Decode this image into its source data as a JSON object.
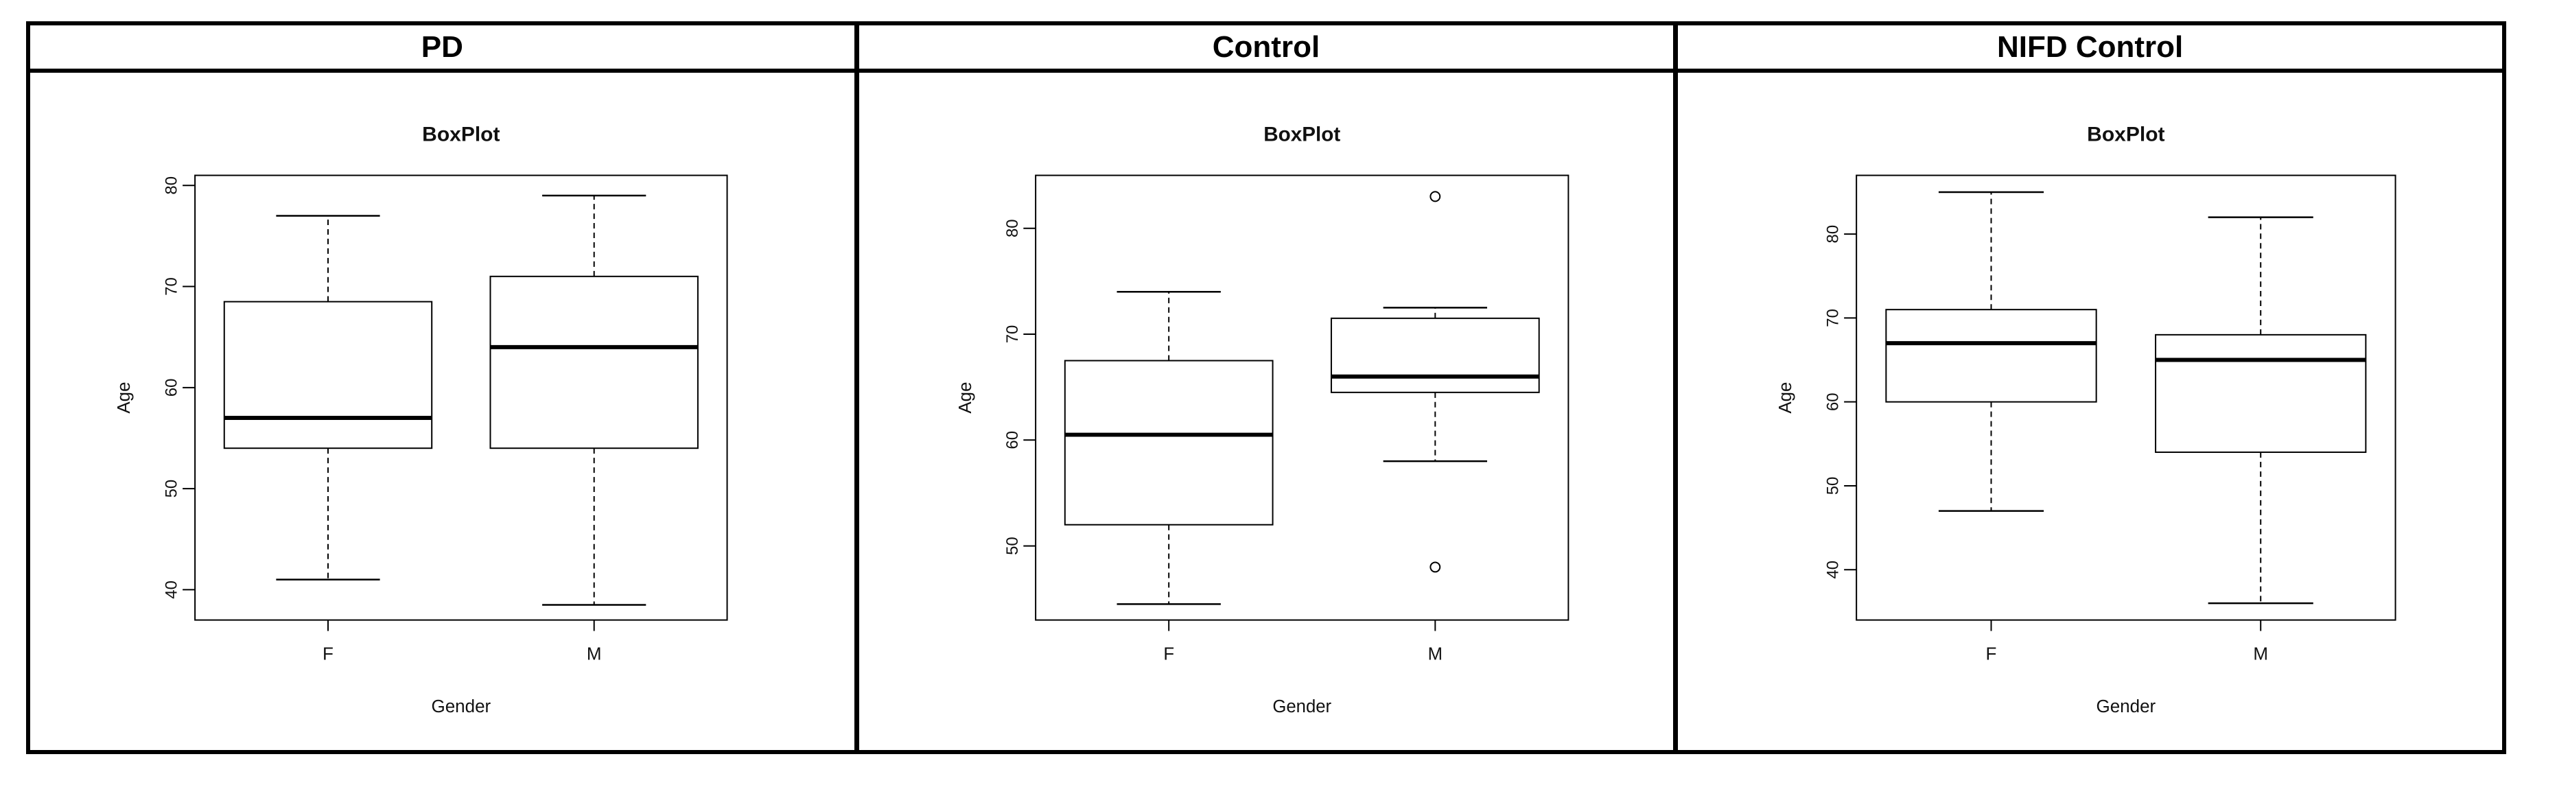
{
  "table": {
    "headers": [
      "PD",
      "Control",
      "NIFD Control"
    ]
  },
  "chart_data": [
    {
      "type": "box",
      "title": "BoxPlot",
      "xlabel": "Gender",
      "ylabel": "Age",
      "categories": [
        "F",
        "M"
      ],
      "ylim": [
        37,
        81
      ],
      "yticks": [
        40,
        50,
        60,
        70,
        80
      ],
      "boxes": [
        {
          "label": "F",
          "whisker_low": 41,
          "q1": 54,
          "median": 57,
          "q3": 68.5,
          "whisker_high": 77,
          "outliers": []
        },
        {
          "label": "M",
          "whisker_low": 38.5,
          "q1": 54,
          "median": 64,
          "q3": 71,
          "whisker_high": 79,
          "outliers": []
        }
      ]
    },
    {
      "type": "box",
      "title": "BoxPlot",
      "xlabel": "Gender",
      "ylabel": "Age",
      "categories": [
        "F",
        "M"
      ],
      "ylim": [
        43,
        85
      ],
      "yticks": [
        50,
        60,
        70,
        80
      ],
      "boxes": [
        {
          "label": "F",
          "whisker_low": 44.5,
          "q1": 52,
          "median": 60.5,
          "q3": 67.5,
          "whisker_high": 74,
          "outliers": []
        },
        {
          "label": "M",
          "whisker_low": 58,
          "q1": 64.5,
          "median": 66,
          "q3": 71.5,
          "whisker_high": 72.5,
          "outliers": [
            48,
            83
          ]
        }
      ]
    },
    {
      "type": "box",
      "title": "BoxPlot",
      "xlabel": "Gender",
      "ylabel": "Age",
      "categories": [
        "F",
        "M"
      ],
      "ylim": [
        34,
        87
      ],
      "yticks": [
        40,
        50,
        60,
        70,
        80
      ],
      "boxes": [
        {
          "label": "F",
          "whisker_low": 47,
          "q1": 60,
          "median": 67,
          "q3": 71,
          "whisker_high": 85,
          "outliers": []
        },
        {
          "label": "M",
          "whisker_low": 36,
          "q1": 54,
          "median": 65,
          "q3": 68,
          "whisker_high": 82,
          "outliers": []
        }
      ]
    }
  ]
}
